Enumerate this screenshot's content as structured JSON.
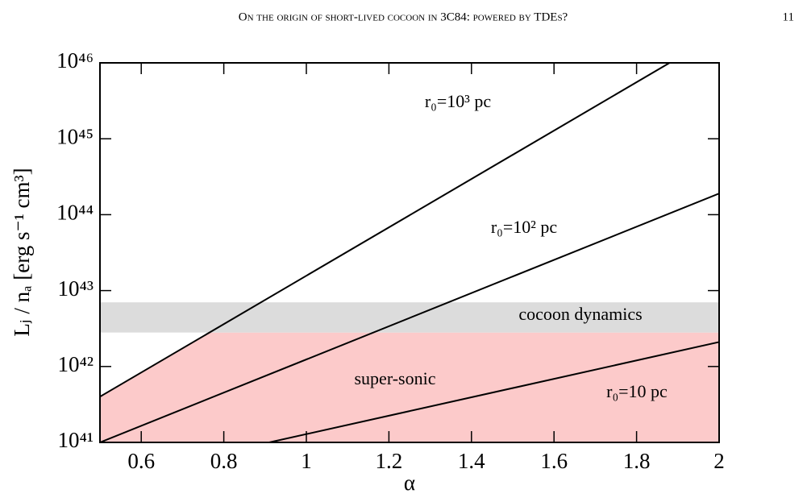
{
  "header": {
    "title": "On the origin of short-lived cocoon in 3C84: powered by TDEs?",
    "page": "11"
  },
  "chart_data": {
    "type": "line",
    "xlabel": "α",
    "ylabel": "Lⱼ / nₐ [erg s⁻¹ cm³]",
    "xlim": [
      0.5,
      2
    ],
    "xticks": [
      0.6,
      0.8,
      1,
      1.2,
      1.4,
      1.6,
      1.8,
      2
    ],
    "ylim": [
      1e+41,
      1e+46
    ],
    "log_y": true,
    "yticks": [
      {
        "value": 1e+41,
        "label": "10⁴¹"
      },
      {
        "value": 1e+42,
        "label": "10⁴²"
      },
      {
        "value": 1e+43,
        "label": "10⁴³"
      },
      {
        "value": 1e+44,
        "label": "10⁴⁴"
      },
      {
        "value": 1e+45,
        "label": "10⁴⁵"
      },
      {
        "value": 1e+46,
        "label": "10⁴⁶"
      }
    ],
    "series": [
      {
        "name": "r₀=10³ pc",
        "color": "#000000",
        "x": [
          0.5,
          1.88
        ],
        "values": [
          4e+41,
          1e+46
        ]
      },
      {
        "name": "r₀=10² pc",
        "color": "#000000",
        "x": [
          0.5,
          2
        ],
        "values": [
          1e+41,
          1.9e+44
        ]
      },
      {
        "name": "r₀=10 pc",
        "color": "#000000",
        "x": [
          0.91,
          2
        ],
        "values": [
          1e+41,
          2.1e+42
        ]
      }
    ],
    "bands": [
      {
        "label": "cocoon dynamics",
        "range": [
          2.8e+42,
          7e+42
        ],
        "color": "#dcdcdc"
      }
    ],
    "regions": [
      {
        "label": "super-sonic",
        "below": 2.8e+42,
        "color": "#fccaca"
      }
    ]
  }
}
